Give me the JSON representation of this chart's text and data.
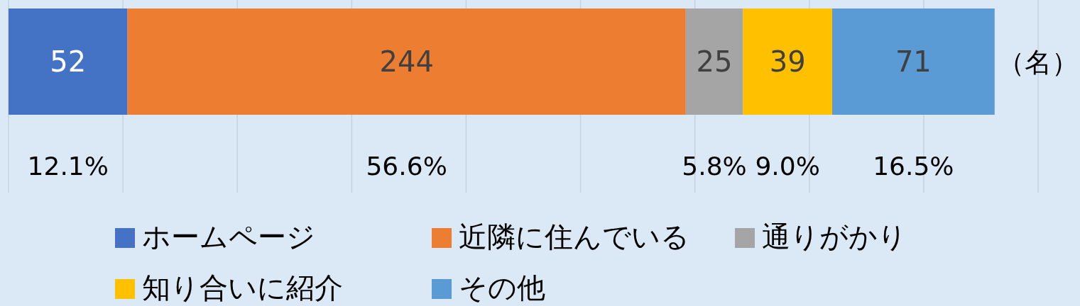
{
  "chart_data": {
    "type": "bar",
    "orientation": "horizontal",
    "stacked": true,
    "categories": [
      null
    ],
    "series": [
      {
        "name": "ホームページ",
        "color": "#4472c4",
        "values": [
          52
        ]
      },
      {
        "name": "近隣に住んでいる",
        "color": "#ed7d31",
        "values": [
          244
        ]
      },
      {
        "name": "通りがかり",
        "color": "#a5a5a5",
        "values": [
          25
        ]
      },
      {
        "name": "知り合いに紹介",
        "color": "#ffc000",
        "values": [
          39
        ]
      },
      {
        "name": "その他",
        "color": "#5b9bd5",
        "values": [
          71
        ]
      }
    ],
    "xlim": [
      0,
      450
    ],
    "xticks": [
      {
        "value": 0,
        "label": null
      },
      {
        "value": 50,
        "label": null
      },
      {
        "value": 100,
        "label": null
      },
      {
        "value": 150,
        "label": null
      },
      {
        "value": 200,
        "label": null
      },
      {
        "value": 250,
        "label": null
      },
      {
        "value": 300,
        "label": null
      },
      {
        "value": 350,
        "label": null
      },
      {
        "value": 400,
        "label": null
      },
      {
        "value": 450,
        "label": null
      }
    ],
    "grid": "x",
    "legend": "bottom",
    "data_labels": true,
    "xlabel": "（名）",
    "annotations": [
      "12.1%",
      "56.6%",
      "5.8%",
      "9.0%",
      "16.5%"
    ]
  }
}
